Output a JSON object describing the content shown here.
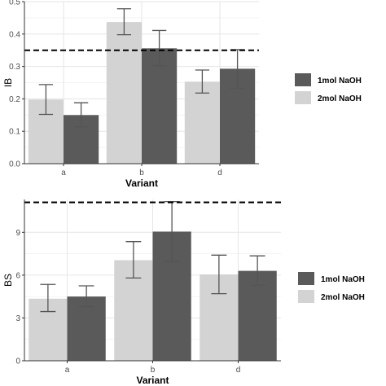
{
  "colors": {
    "series_dark": "#5a5a5a",
    "series_light": "#d3d3d3",
    "panel_bg": "#ffffff",
    "grid": "#e6e6e6",
    "axis": "#333333",
    "error_bar": "#555555",
    "reference_line": "#000000"
  },
  "chart_data": [
    {
      "type": "bar",
      "xlabel": "Variant",
      "ylabel": "IB",
      "categories": [
        "a",
        "b",
        "d"
      ],
      "ylim": [
        0,
        0.5
      ],
      "yticks": [
        0.0,
        0.1,
        0.2,
        0.3,
        0.4,
        0.5
      ],
      "ytick_labels": [
        "0.0",
        "0.1",
        "0.2",
        "0.3",
        "0.4",
        "0.5"
      ],
      "reference_line": 0.35,
      "grid": true,
      "legend_position": "right",
      "series": [
        {
          "name": "2mol NaOH",
          "values": [
            0.198,
            0.437,
            0.253
          ],
          "err_low": [
            0.152,
            0.398,
            0.218
          ],
          "err_high": [
            0.244,
            0.478,
            0.289
          ]
        },
        {
          "name": "1mol NaOH",
          "values": [
            0.15,
            0.356,
            0.293
          ],
          "err_low": [
            0.114,
            0.302,
            0.232
          ],
          "err_high": [
            0.188,
            0.411,
            0.352
          ]
        }
      ],
      "legend": [
        "1mol NaOH",
        "2mol NaOH"
      ]
    },
    {
      "type": "bar",
      "xlabel": "Variant",
      "ylabel": "BS",
      "categories": [
        "a",
        "b",
        "d"
      ],
      "ylim": [
        0,
        11.3
      ],
      "yticks": [
        0,
        3,
        6,
        9
      ],
      "ytick_labels": [
        "0",
        "3",
        "6",
        "9"
      ],
      "reference_line": 11.1,
      "grid": true,
      "legend_position": "right",
      "series": [
        {
          "name": "2mol NaOH",
          "values": [
            4.35,
            7.05,
            6.05
          ],
          "err_low": [
            3.45,
            5.8,
            4.7
          ],
          "err_high": [
            5.35,
            8.35,
            7.4
          ]
        },
        {
          "name": "1mol NaOH",
          "values": [
            4.5,
            9.05,
            6.3
          ],
          "err_low": [
            3.8,
            6.95,
            5.3
          ],
          "err_high": [
            5.25,
            11.15,
            7.35
          ]
        }
      ],
      "legend": [
        "1mol NaOH",
        "2mol NaOH"
      ]
    }
  ]
}
